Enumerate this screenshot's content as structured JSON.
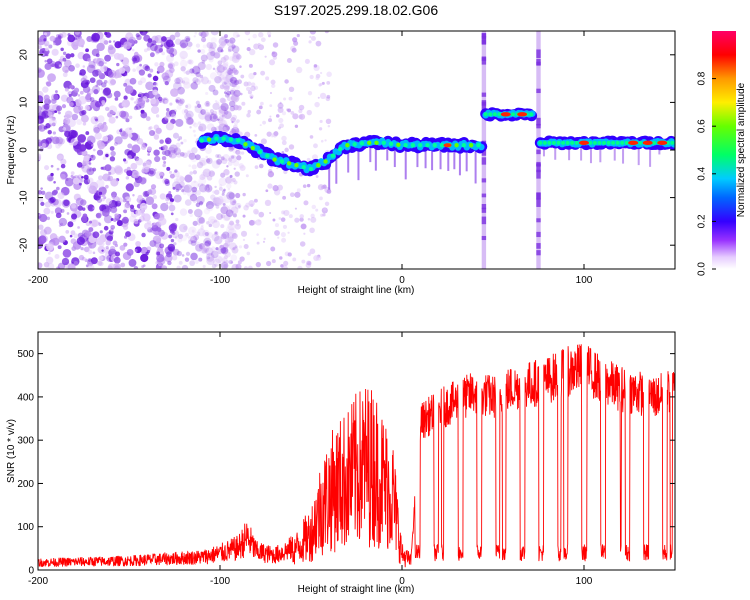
{
  "figure_title": "S197.2025.299.18.02.G06",
  "chart_data": [
    {
      "type": "heatmap",
      "xlabel": "Height of straight line (km)",
      "ylabel": "Frequency (Hz)",
      "xlim": [
        -200,
        150
      ],
      "ylim": [
        -25,
        25
      ],
      "xticks": [
        -200,
        -100,
        0,
        100
      ],
      "yticks": [
        -20,
        -10,
        0,
        10,
        20
      ],
      "xtick_labels": [
        "-200",
        "-100",
        "0",
        "100"
      ],
      "ytick_labels": [
        "-20",
        "-10",
        "0",
        "10",
        "20"
      ],
      "colorbar": {
        "label": "Normalized spectral amplitude",
        "range": [
          0,
          1
        ],
        "ticks": [
          0.0,
          0.2,
          0.4,
          0.6,
          0.8
        ],
        "tick_labels": [
          "0.0",
          "0.2",
          "0.4",
          "0.6",
          "0.8"
        ],
        "colormap": [
          "#ffffff",
          "#e6ccff",
          "#6600ff",
          "#0000ff",
          "#00ccff",
          "#00ff66",
          "#ccff00",
          "#ff9900",
          "#ff0000",
          "#ff0066"
        ]
      },
      "noise_region_x": [
        -200,
        -100
      ],
      "signal_track": {
        "x": [
          -110,
          -100,
          -90,
          -80,
          -70,
          -60,
          -50,
          -45,
          -40,
          -35,
          -30,
          -20,
          -10,
          0,
          10,
          20,
          30,
          45
        ],
        "freq": [
          2,
          2.5,
          2,
          0,
          -2,
          -3,
          -4,
          -3,
          -2,
          0,
          1,
          1.5,
          1.5,
          1,
          1,
          1,
          1,
          1
        ]
      },
      "segments": [
        {
          "x": [
            46,
            72
          ],
          "freq": 7.5
        },
        {
          "x": [
            76,
            150
          ],
          "freq": 1.5
        }
      ]
    },
    {
      "type": "line",
      "xlabel": "Height of straight line (km)",
      "ylabel": "SNR (10 * v/v)",
      "xlim": [
        -200,
        150
      ],
      "ylim": [
        0,
        550
      ],
      "xticks": [
        -200,
        -100,
        0,
        100
      ],
      "yticks": [
        0,
        100,
        200,
        300,
        400,
        500
      ],
      "xtick_labels": [
        "-200",
        "-100",
        "0",
        "100"
      ],
      "ytick_labels": [
        "0",
        "100",
        "200",
        "300",
        "400",
        "500"
      ],
      "line_color": "#ff0000",
      "series": [
        {
          "name": "SNR",
          "x": [
            -200,
            -150,
            -110,
            -100,
            -90,
            -85,
            -80,
            -70,
            -60,
            -50,
            -45,
            -40,
            -35,
            -30,
            -25,
            -20,
            -15,
            -10,
            -5,
            0,
            5,
            10,
            20,
            30,
            40,
            50,
            60,
            70,
            80,
            90,
            100,
            110,
            120,
            130,
            140,
            150
          ],
          "y": [
            20,
            25,
            35,
            45,
            60,
            90,
            50,
            40,
            60,
            120,
            200,
            250,
            280,
            300,
            330,
            350,
            340,
            290,
            250,
            50,
            30,
            350,
            380,
            400,
            420,
            410,
            430,
            440,
            450,
            470,
            480,
            450,
            430,
            420,
            410,
            430
          ]
        }
      ]
    }
  ]
}
